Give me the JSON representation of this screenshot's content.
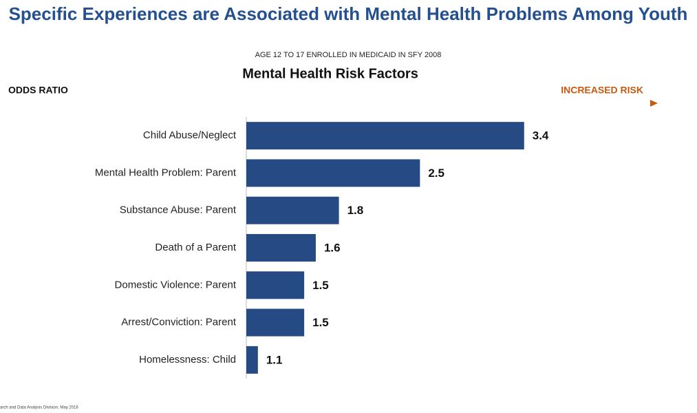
{
  "chart_data": {
    "type": "barh",
    "title": "Specific Experiences are Associated with Mental Health Problems Among Youth",
    "subtitle": "AGE 12 TO 17 ENROLLED IN MEDICAID IN SFY 2008",
    "chart_title": "Mental Health Risk Factors",
    "axis_label": "ODDS RATIO",
    "annotation": "INCREASED RISK",
    "source": "arch and Data Analysis Division, May 2016",
    "categories": [
      "Child Abuse/Neglect",
      "Mental Health Problem: Parent",
      "Substance Abuse: Parent",
      "Death of a Parent",
      "Domestic Violence: Parent",
      "Arrest/Conviction: Parent",
      "Homelessness: Child"
    ],
    "values": [
      3.4,
      2.5,
      1.8,
      1.6,
      1.5,
      1.5,
      1.1
    ],
    "color": "#264b84",
    "xlim": [
      1,
      4.4
    ]
  }
}
